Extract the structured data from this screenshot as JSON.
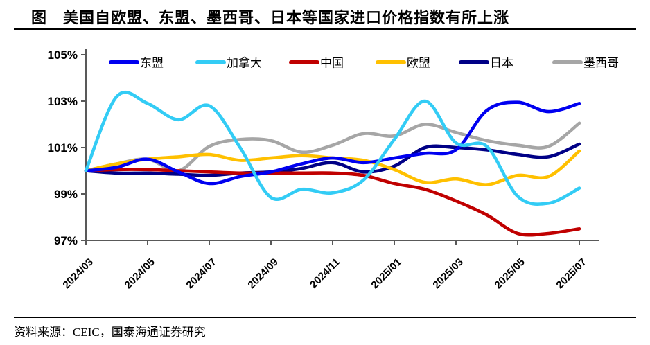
{
  "title": "图　美国自欧盟、东盟、墨西哥、日本等国家进口价格指数有所上涨",
  "source": "资料来源：CEIC，国泰海通证券研究",
  "chart_data": {
    "type": "line",
    "title": "",
    "xlabel": "",
    "ylabel": "",
    "x": [
      "2024/03",
      "2024/04",
      "2024/05",
      "2024/06",
      "2024/07",
      "2024/08",
      "2024/09",
      "2024/10",
      "2024/11",
      "2024/12",
      "2025/01",
      "2025/02",
      "2025/03",
      "2025/04",
      "2025/05",
      "2025/06",
      "2025/07"
    ],
    "xtick_labels": [
      "2024/03",
      "2024/05",
      "2024/07",
      "2024/09",
      "2024/11",
      "2025/01",
      "2025/03",
      "2025/05",
      "2025/07"
    ],
    "xtick_step": 2,
    "ylim": [
      97,
      105
    ],
    "ytick_values": [
      97,
      99,
      101,
      103,
      105
    ],
    "ytick_labels": [
      "97%",
      "99%",
      "101%",
      "103%",
      "105%"
    ],
    "grid": false,
    "legend_position": "top",
    "line_smoothing": true,
    "series": [
      {
        "key": "asean",
        "name": "东盟",
        "color": "#0000F0",
        "values": [
          100.0,
          100.15,
          100.5,
          99.95,
          99.45,
          99.75,
          99.95,
          100.3,
          100.55,
          100.35,
          100.55,
          100.75,
          100.9,
          102.6,
          102.95,
          102.55,
          102.9
        ]
      },
      {
        "key": "canada",
        "name": "加拿大",
        "color": "#33CCF5",
        "values": [
          100.0,
          103.2,
          102.9,
          102.2,
          102.8,
          101.0,
          98.85,
          99.2,
          99.05,
          99.6,
          101.35,
          103.0,
          101.2,
          101.05,
          98.9,
          98.6,
          99.25
        ]
      },
      {
        "key": "china",
        "name": "中国",
        "color": "#C00000",
        "values": [
          100.0,
          100.05,
          100.05,
          100.0,
          99.95,
          99.9,
          99.9,
          99.9,
          99.9,
          99.8,
          99.45,
          99.2,
          98.7,
          98.1,
          97.3,
          97.3,
          97.5
        ]
      },
      {
        "key": "eu",
        "name": "欧盟",
        "color": "#FFC000",
        "values": [
          100.0,
          100.3,
          100.5,
          100.6,
          100.7,
          100.45,
          100.55,
          100.65,
          100.55,
          100.45,
          100.05,
          99.5,
          99.65,
          99.4,
          99.8,
          99.75,
          100.85
        ]
      },
      {
        "key": "japan",
        "name": "日本",
        "color": "#000086",
        "values": [
          100.0,
          99.9,
          99.9,
          99.85,
          99.8,
          99.9,
          99.95,
          100.1,
          100.35,
          99.95,
          100.2,
          101.0,
          101.0,
          100.9,
          100.7,
          100.6,
          101.15
        ]
      },
      {
        "key": "mexico",
        "name": "墨西哥",
        "color": "#A6A6A6",
        "values": [
          100.0,
          100.3,
          100.5,
          100.0,
          101.05,
          101.35,
          101.3,
          100.8,
          101.1,
          101.6,
          101.5,
          102.0,
          101.65,
          101.3,
          101.1,
          101.05,
          102.05
        ]
      }
    ]
  }
}
